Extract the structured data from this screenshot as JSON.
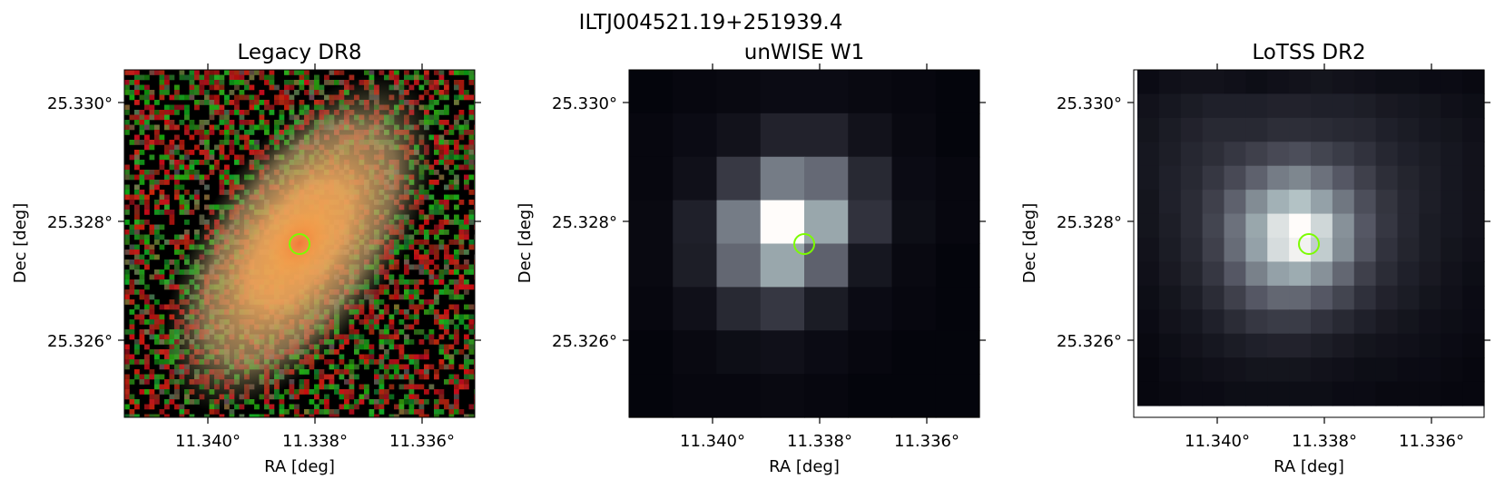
{
  "figure": {
    "title": "ILTJ004521.19+251939.4"
  },
  "panels": [
    {
      "key": "legacy",
      "title": "Legacy DR8",
      "xlabel": "RA [deg]",
      "ylabel": "Dec [deg]",
      "xticks": [
        "11.340°",
        "11.338°",
        "11.336°"
      ],
      "yticks": [
        "25.330°",
        "25.328°",
        "25.326°"
      ]
    },
    {
      "key": "unwise",
      "title": "unWISE W1",
      "xlabel": "RA [deg]",
      "ylabel": "Dec [deg]",
      "xticks": [
        "11.340°",
        "11.338°",
        "11.336°"
      ],
      "yticks": [
        "25.330°",
        "25.328°",
        "25.326°"
      ]
    },
    {
      "key": "lotss",
      "title": "LoTSS DR2",
      "xlabel": "RA [deg]",
      "ylabel": "Dec [deg]",
      "xticks": [
        "11.340°",
        "11.338°",
        "11.336°"
      ],
      "yticks": [
        "25.330°",
        "25.328°",
        "25.326°"
      ]
    }
  ],
  "colors": {
    "marker": "#7cfc00",
    "background": "#000000",
    "galaxy": "#f0a050",
    "axes": "#000000"
  },
  "images": {
    "unwise_grid": [
      [
        0.02,
        0.03,
        0.04,
        0.05,
        0.05,
        0.04,
        0.03,
        0.02
      ],
      [
        0.03,
        0.05,
        0.08,
        0.15,
        0.15,
        0.08,
        0.04,
        0.02
      ],
      [
        0.03,
        0.07,
        0.25,
        0.52,
        0.45,
        0.18,
        0.05,
        0.03
      ],
      [
        0.04,
        0.14,
        0.52,
        1.0,
        0.68,
        0.22,
        0.06,
        0.03
      ],
      [
        0.04,
        0.13,
        0.44,
        0.68,
        0.42,
        0.1,
        0.04,
        0.02
      ],
      [
        0.03,
        0.07,
        0.18,
        0.24,
        0.12,
        0.05,
        0.03,
        0.02
      ],
      [
        0.02,
        0.04,
        0.06,
        0.07,
        0.05,
        0.03,
        0.02,
        0.02
      ],
      [
        0.02,
        0.03,
        0.03,
        0.04,
        0.03,
        0.02,
        0.02,
        0.02
      ]
    ],
    "lotss_grid": [
      [
        0.05,
        0.07,
        0.08,
        0.08,
        0.07,
        0.06,
        0.07,
        0.08,
        0.09,
        0.08,
        0.07,
        0.06,
        0.06,
        0.05,
        0.05,
        0.04
      ],
      [
        0.08,
        0.1,
        0.12,
        0.14,
        0.14,
        0.14,
        0.15,
        0.15,
        0.14,
        0.14,
        0.13,
        0.11,
        0.1,
        0.09,
        0.07,
        0.06
      ],
      [
        0.09,
        0.12,
        0.15,
        0.18,
        0.18,
        0.18,
        0.2,
        0.2,
        0.19,
        0.18,
        0.17,
        0.14,
        0.12,
        0.1,
        0.09,
        0.07
      ],
      [
        0.1,
        0.13,
        0.17,
        0.2,
        0.24,
        0.28,
        0.32,
        0.34,
        0.3,
        0.26,
        0.22,
        0.17,
        0.14,
        0.12,
        0.1,
        0.08
      ],
      [
        0.1,
        0.14,
        0.18,
        0.24,
        0.32,
        0.42,
        0.52,
        0.56,
        0.48,
        0.38,
        0.28,
        0.2,
        0.16,
        0.13,
        0.1,
        0.08
      ],
      [
        0.09,
        0.14,
        0.19,
        0.28,
        0.42,
        0.58,
        0.72,
        0.78,
        0.66,
        0.5,
        0.34,
        0.23,
        0.17,
        0.13,
        0.1,
        0.08
      ],
      [
        0.09,
        0.13,
        0.19,
        0.3,
        0.48,
        0.68,
        0.9,
        1.0,
        0.86,
        0.6,
        0.38,
        0.24,
        0.17,
        0.12,
        0.1,
        0.08
      ],
      [
        0.08,
        0.12,
        0.18,
        0.28,
        0.46,
        0.66,
        0.88,
        0.96,
        0.82,
        0.58,
        0.36,
        0.22,
        0.16,
        0.12,
        0.09,
        0.07
      ],
      [
        0.07,
        0.11,
        0.16,
        0.24,
        0.38,
        0.54,
        0.66,
        0.7,
        0.6,
        0.44,
        0.28,
        0.19,
        0.14,
        0.11,
        0.08,
        0.06
      ],
      [
        0.06,
        0.09,
        0.13,
        0.19,
        0.28,
        0.38,
        0.44,
        0.44,
        0.38,
        0.3,
        0.21,
        0.15,
        0.12,
        0.09,
        0.07,
        0.05
      ],
      [
        0.05,
        0.08,
        0.1,
        0.14,
        0.19,
        0.24,
        0.26,
        0.26,
        0.22,
        0.18,
        0.14,
        0.11,
        0.09,
        0.07,
        0.06,
        0.05
      ],
      [
        0.04,
        0.06,
        0.08,
        0.1,
        0.12,
        0.14,
        0.15,
        0.15,
        0.13,
        0.11,
        0.09,
        0.08,
        0.07,
        0.06,
        0.05,
        0.04
      ],
      [
        0.03,
        0.05,
        0.06,
        0.07,
        0.08,
        0.09,
        0.09,
        0.09,
        0.08,
        0.07,
        0.06,
        0.06,
        0.05,
        0.05,
        0.04,
        0.03
      ],
      [
        0.03,
        0.04,
        0.05,
        0.05,
        0.06,
        0.06,
        0.06,
        0.06,
        0.06,
        0.05,
        0.05,
        0.04,
        0.04,
        0.04,
        0.03,
        0.03
      ]
    ]
  }
}
